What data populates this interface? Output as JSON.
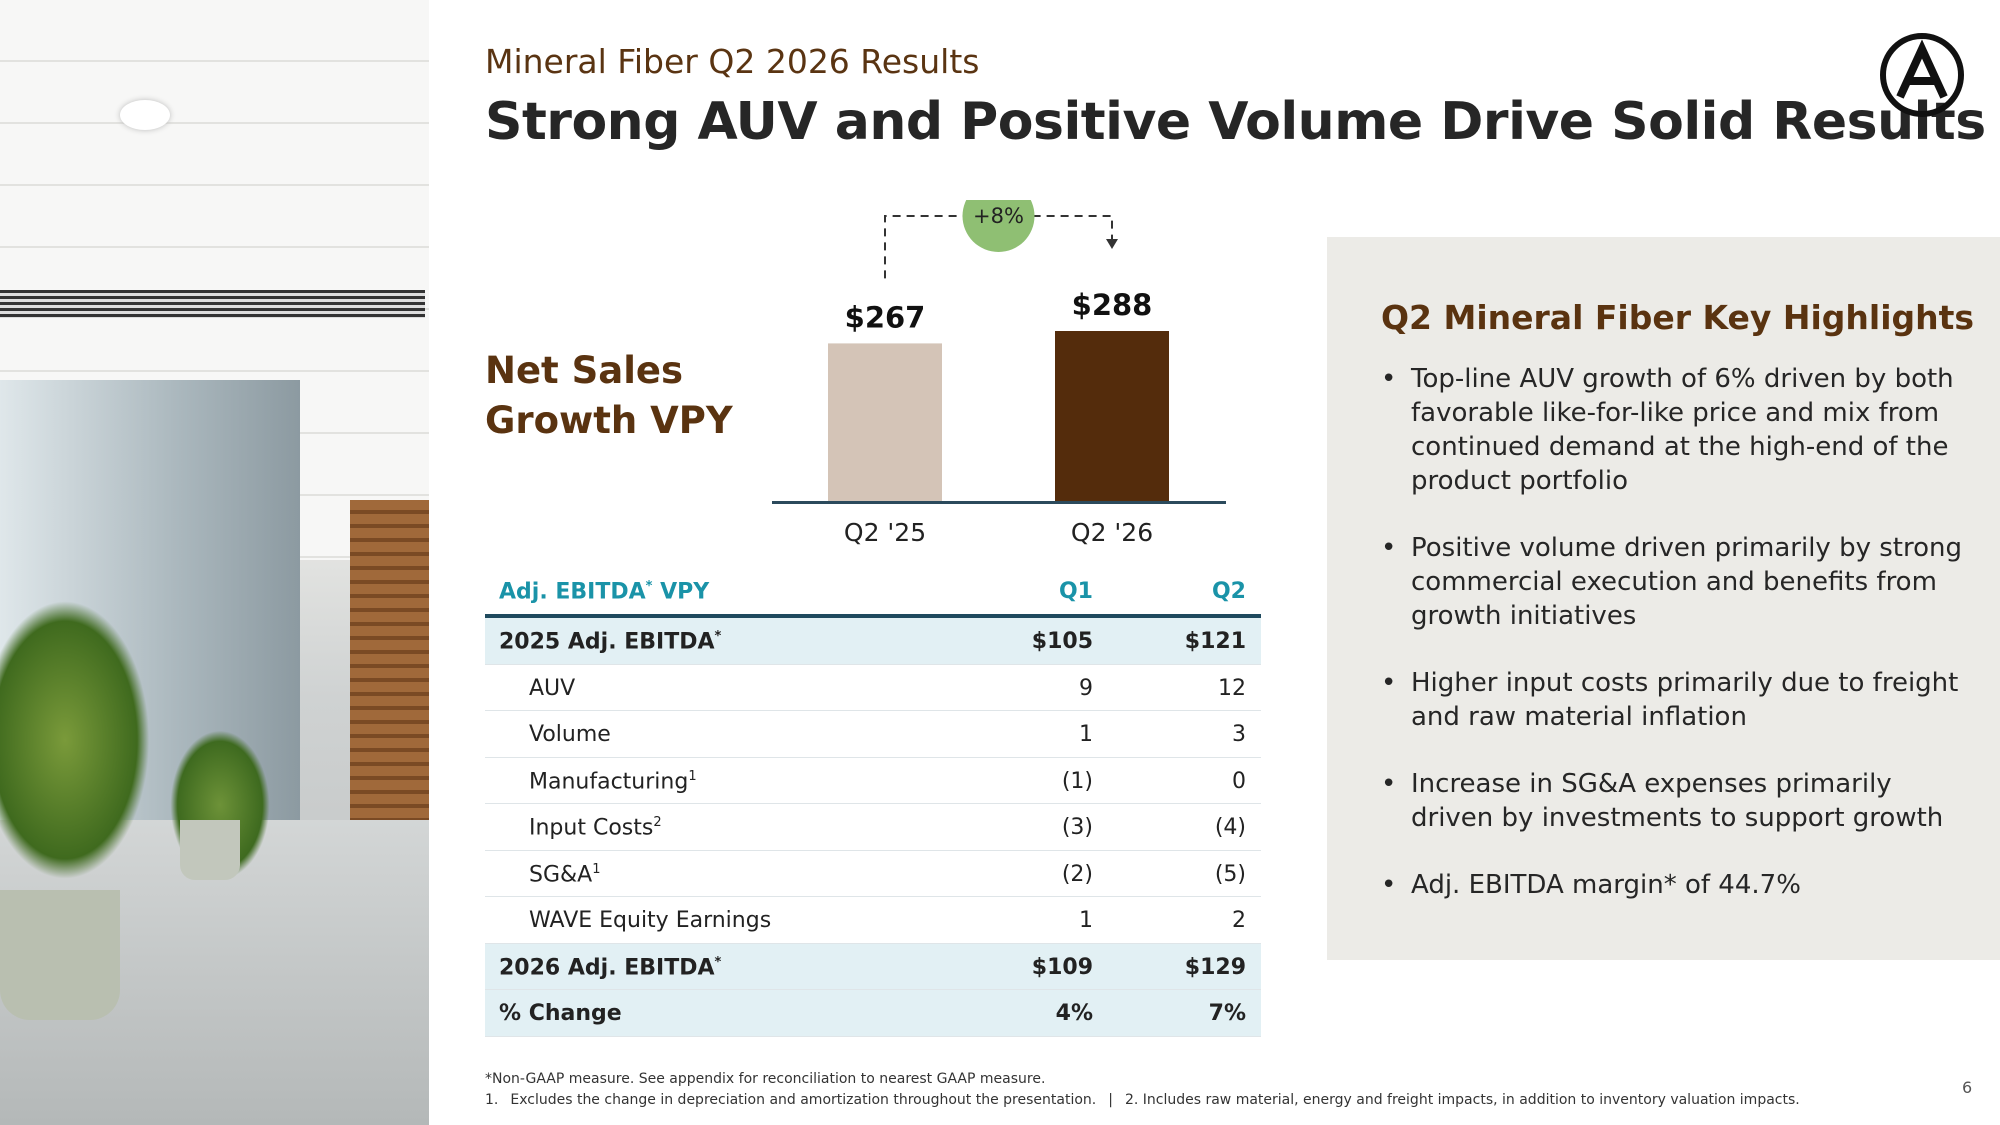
{
  "header": {
    "subtitle": "Mineral Fiber Q2 2026 Results",
    "title": "Strong AUV and Positive Volume Drive Solid Results"
  },
  "chart_data": {
    "type": "bar",
    "title": "Net Sales Growth VPY",
    "categories": [
      "Q2 '25",
      "Q2 '26"
    ],
    "values": [
      267,
      288
    ],
    "value_labels": [
      "$267",
      "$288"
    ],
    "colors": [
      "#d4c4b7",
      "#542c0c"
    ],
    "annotation": "+8%"
  },
  "table": {
    "header": {
      "label": "Adj. EBITDA",
      "note": "*",
      "suffix": " VPY",
      "q1": "Q1",
      "q2": "Q2"
    },
    "rows": [
      {
        "label": "2025 Adj. EBITDA",
        "note": "*",
        "q1": "$105",
        "q2": "$121",
        "highlight": true
      },
      {
        "label": "AUV",
        "q1": "9",
        "q2": "12"
      },
      {
        "label": "Volume",
        "q1": "1",
        "q2": "3"
      },
      {
        "label": "Manufacturing",
        "note": "1",
        "q1": "(1)",
        "q2": "0"
      },
      {
        "label": "Input Costs",
        "note": "2",
        "q1": "(3)",
        "q2": "(4)"
      },
      {
        "label": "SG&A",
        "note": "1",
        "q1": "(2)",
        "q2": "(5)"
      },
      {
        "label": "WAVE Equity Earnings",
        "q1": "1",
        "q2": "2"
      },
      {
        "label": "2026 Adj. EBITDA",
        "note": "*",
        "q1": "$109",
        "q2": "$129",
        "highlight": true
      },
      {
        "label": "% Change",
        "q1": "4%",
        "q2": "7%",
        "highlight": true
      }
    ]
  },
  "highlights": {
    "title": "Q2 Mineral Fiber Key Highlights",
    "bullets": [
      "Top-line AUV growth of 6% driven by both favorable like-for-like price and mix from continued demand at the high-end of the product portfolio",
      "Positive volume driven primarily by strong commercial execution and benefits from growth initiatives",
      "Higher input costs primarily due to freight and raw material inflation",
      "Increase in SG&A expenses primarily driven by investments to support growth",
      "Adj. EBITDA margin* of 44.7%"
    ]
  },
  "footnotes": {
    "line1": "*Non-GAAP measure. See appendix for reconciliation to nearest GAAP measure.",
    "line2": [
      "1.",
      "Excludes the change in depreciation and amortization throughout the presentation.",
      "|",
      "2. Includes raw material, energy and freight impacts, in addition to inventory valuation impacts."
    ]
  },
  "page_number": "6"
}
